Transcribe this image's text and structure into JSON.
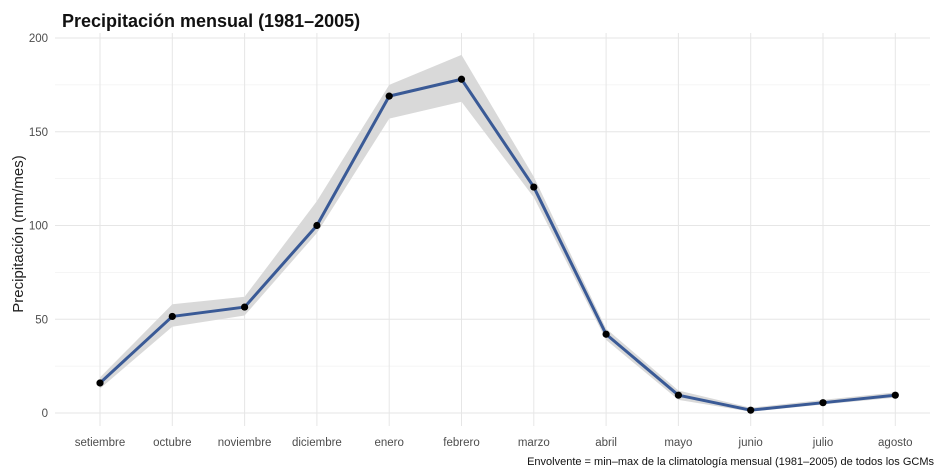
{
  "chart_data": {
    "type": "line",
    "title": "Precipitación mensual (1981–2005)",
    "xlabel": "",
    "ylabel": "Precipitación (mm/mes)",
    "caption": "Envolvente = min–max de la climatología mensual (1981–2005) de todos los GCMs",
    "categories": [
      "setiembre",
      "octubre",
      "noviembre",
      "diciembre",
      "enero",
      "febrero",
      "marzo",
      "abril",
      "mayo",
      "junio",
      "julio",
      "agosto"
    ],
    "series": [
      {
        "values": [
          16,
          51.5,
          56.5,
          100,
          169,
          178,
          120.5,
          42,
          9.5,
          1.5,
          5.5,
          9.5
        ]
      }
    ],
    "envelope": {
      "min": [
        13,
        46,
        52,
        96,
        157,
        166,
        115,
        39,
        7,
        0.7,
        4.5,
        8.2
      ],
      "max": [
        19,
        58,
        62,
        113,
        175,
        191,
        126,
        45,
        12,
        2.8,
        7,
        11
      ]
    },
    "ylim": [
      -7,
      200
    ],
    "yticks": [
      0,
      50,
      100,
      150,
      200
    ],
    "grid": true,
    "colors": {
      "line": "#3a5a96",
      "point": "#000000",
      "envelope": "#d9d9d9",
      "grid": "#e6e6e6"
    }
  }
}
